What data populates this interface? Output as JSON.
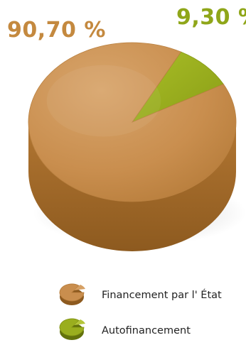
{
  "chart_data": {
    "type": "pie",
    "style": "3d",
    "slices": [
      {
        "label": "Financement par l' État",
        "value": 90.7,
        "display": "90,70 %",
        "color": "#C98E4E"
      },
      {
        "label": "Autofinancement",
        "value": 9.3,
        "display": "9,30 %",
        "color": "#9AAE1E"
      }
    ],
    "legend": {
      "placement": "bottom-center",
      "items": [
        {
          "label": "Financement par l' État",
          "icon": "pie-icon-brown",
          "color": "#C98E4E"
        },
        {
          "label": "Autofinancement",
          "icon": "pie-icon-green",
          "color": "#9AAE1E"
        }
      ]
    }
  }
}
